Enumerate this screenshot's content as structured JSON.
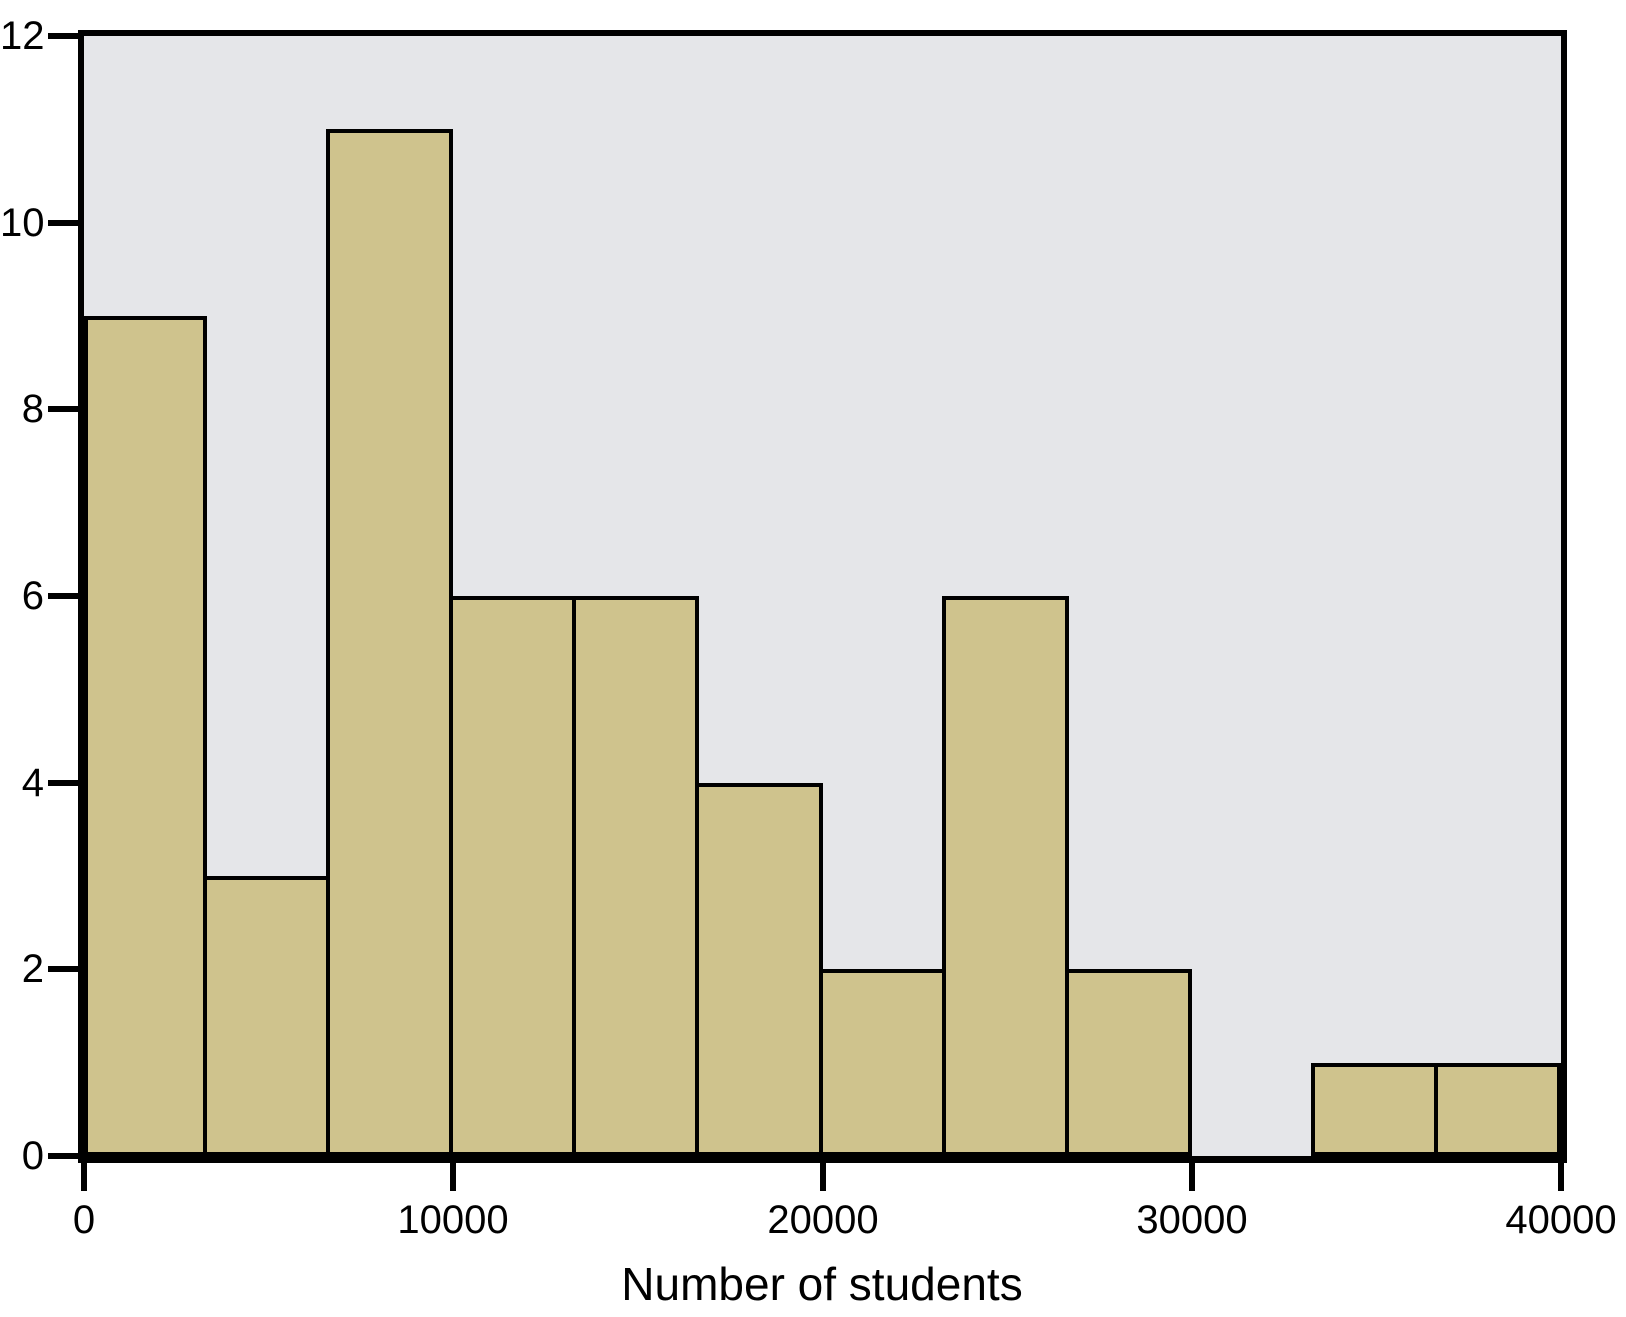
{
  "chart_data": {
    "type": "bar",
    "subtype": "histogram",
    "title": "",
    "xlabel": "Number of students",
    "ylabel": "",
    "xlim": [
      0,
      40000
    ],
    "ylim": [
      0,
      12
    ],
    "bin_edges": [
      0,
      3333,
      6667,
      10000,
      13333,
      16667,
      20000,
      23333,
      26667,
      30000,
      33333,
      36667,
      40000
    ],
    "counts": [
      9,
      3,
      11,
      6,
      6,
      4,
      2,
      6,
      2,
      0,
      1,
      1
    ],
    "x_ticks": [
      0,
      10000,
      20000,
      30000,
      40000
    ],
    "x_tick_labels": [
      "0",
      "10000",
      "20000",
      "30000",
      "40000"
    ],
    "y_ticks": [
      0,
      2,
      4,
      6,
      8,
      10,
      12
    ],
    "y_tick_labels": [
      "0",
      "2",
      "4",
      "6",
      "8",
      "10",
      "12"
    ],
    "grid": false,
    "legend": null,
    "colors": {
      "bar_fill": "#cfc38d",
      "bar_border": "#000000",
      "plot_background": "#e5e6e9",
      "axis": "#000000",
      "page_background": "#ffffff",
      "text": "#000000"
    }
  }
}
